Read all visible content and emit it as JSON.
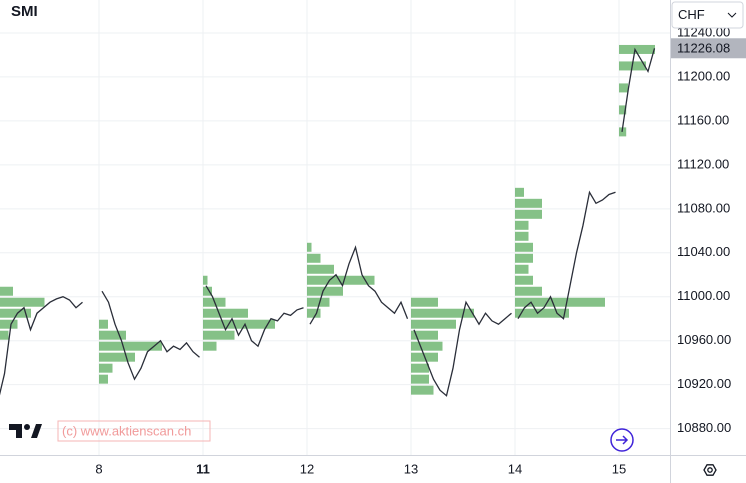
{
  "chart_data": {
    "type": "line",
    "title": "SMI",
    "currency": "CHF",
    "watermark": "(c) www.aktienscan.ch",
    "categories": [
      null,
      "8",
      "11",
      "12",
      "13",
      "14",
      "15"
    ],
    "sessions": [
      {
        "values": [
          10905,
          10930,
          10975,
          10985,
          10990,
          10970,
          10985,
          10990,
          10995,
          10998,
          11000,
          10997,
          10990,
          10995
        ],
        "profile_prices": [
          10965,
          10975,
          10985,
          10995,
          11005
        ],
        "profile_volumes": [
          15,
          25,
          40,
          55,
          20
        ]
      },
      {
        "values": [
          11005,
          10995,
          10975,
          10960,
          10940,
          10925,
          10935,
          10950,
          10955,
          10960,
          10950,
          10955,
          10952,
          10958,
          10950,
          10945
        ],
        "profile_prices": [
          10925,
          10935,
          10945,
          10955,
          10965,
          10975
        ],
        "profile_volumes": [
          10,
          15,
          40,
          70,
          30,
          10
        ]
      },
      {
        "values": [
          11010,
          11000,
          10985,
          10970,
          10980,
          10965,
          10975,
          10960,
          10955,
          10970,
          10980,
          10978,
          10985,
          10983,
          10988,
          10990
        ],
        "profile_prices": [
          10955,
          10965,
          10975,
          10985,
          10995,
          11005,
          11015
        ],
        "profile_volumes": [
          15,
          35,
          80,
          50,
          25,
          10,
          5
        ]
      },
      {
        "values": [
          10975,
          10985,
          11005,
          11015,
          11020,
          11010,
          11030,
          11045,
          11020,
          11010,
          11005,
          10995,
          10990,
          10985,
          10995,
          10980
        ],
        "profile_prices": [
          10985,
          10995,
          11005,
          11015,
          11025,
          11035,
          11045
        ],
        "profile_volumes": [
          15,
          25,
          40,
          75,
          30,
          15,
          5
        ]
      },
      {
        "values": [
          10970,
          10955,
          10940,
          10925,
          10915,
          10910,
          10935,
          10970,
          10995,
          10985,
          10975,
          10985,
          10978,
          10975,
          10980,
          10985
        ],
        "profile_prices": [
          10915,
          10925,
          10935,
          10945,
          10955,
          10965,
          10975,
          10985,
          10995
        ],
        "profile_volumes": [
          25,
          20,
          20,
          30,
          35,
          30,
          50,
          70,
          30
        ]
      },
      {
        "values": [
          10980,
          10990,
          10995,
          10985,
          10990,
          11000,
          10985,
          10980,
          11010,
          11040,
          11065,
          11095,
          11085,
          11088,
          11093,
          11095
        ],
        "profile_prices": [
          10985,
          10995,
          11005,
          11015,
          11025,
          11035,
          11045,
          11055,
          11065,
          11075,
          11085,
          11095
        ],
        "profile_volumes": [
          60,
          100,
          30,
          20,
          15,
          20,
          20,
          15,
          15,
          30,
          30,
          10
        ]
      },
      {
        "values": [
          11150,
          11190,
          11225,
          11215,
          11205,
          11226.08
        ],
        "profile_prices": [
          11150,
          11170,
          11190,
          11210,
          11225
        ],
        "profile_volumes": [
          8,
          8,
          10,
          30,
          40
        ]
      }
    ],
    "last_price": 11226.08,
    "ylim": [
      10856,
      11270
    ],
    "yticks": [
      {
        "value": 10880,
        "label": "10880.00"
      },
      {
        "value": 10920,
        "label": "10920.00"
      },
      {
        "value": 10960,
        "label": "10960.00"
      },
      {
        "value": 11000,
        "label": "11000.00"
      },
      {
        "value": 11040,
        "label": "11040.00"
      },
      {
        "value": 11080,
        "label": "11080.00"
      },
      {
        "value": 11120,
        "label": "11120.00"
      },
      {
        "value": 11160,
        "label": "11160.00"
      },
      {
        "value": 11200,
        "label": "11200.00"
      },
      {
        "value": 11240,
        "label": "11240.00"
      }
    ],
    "line_color": "#2a2e39",
    "profile_color": "#43a047",
    "grid": true
  }
}
